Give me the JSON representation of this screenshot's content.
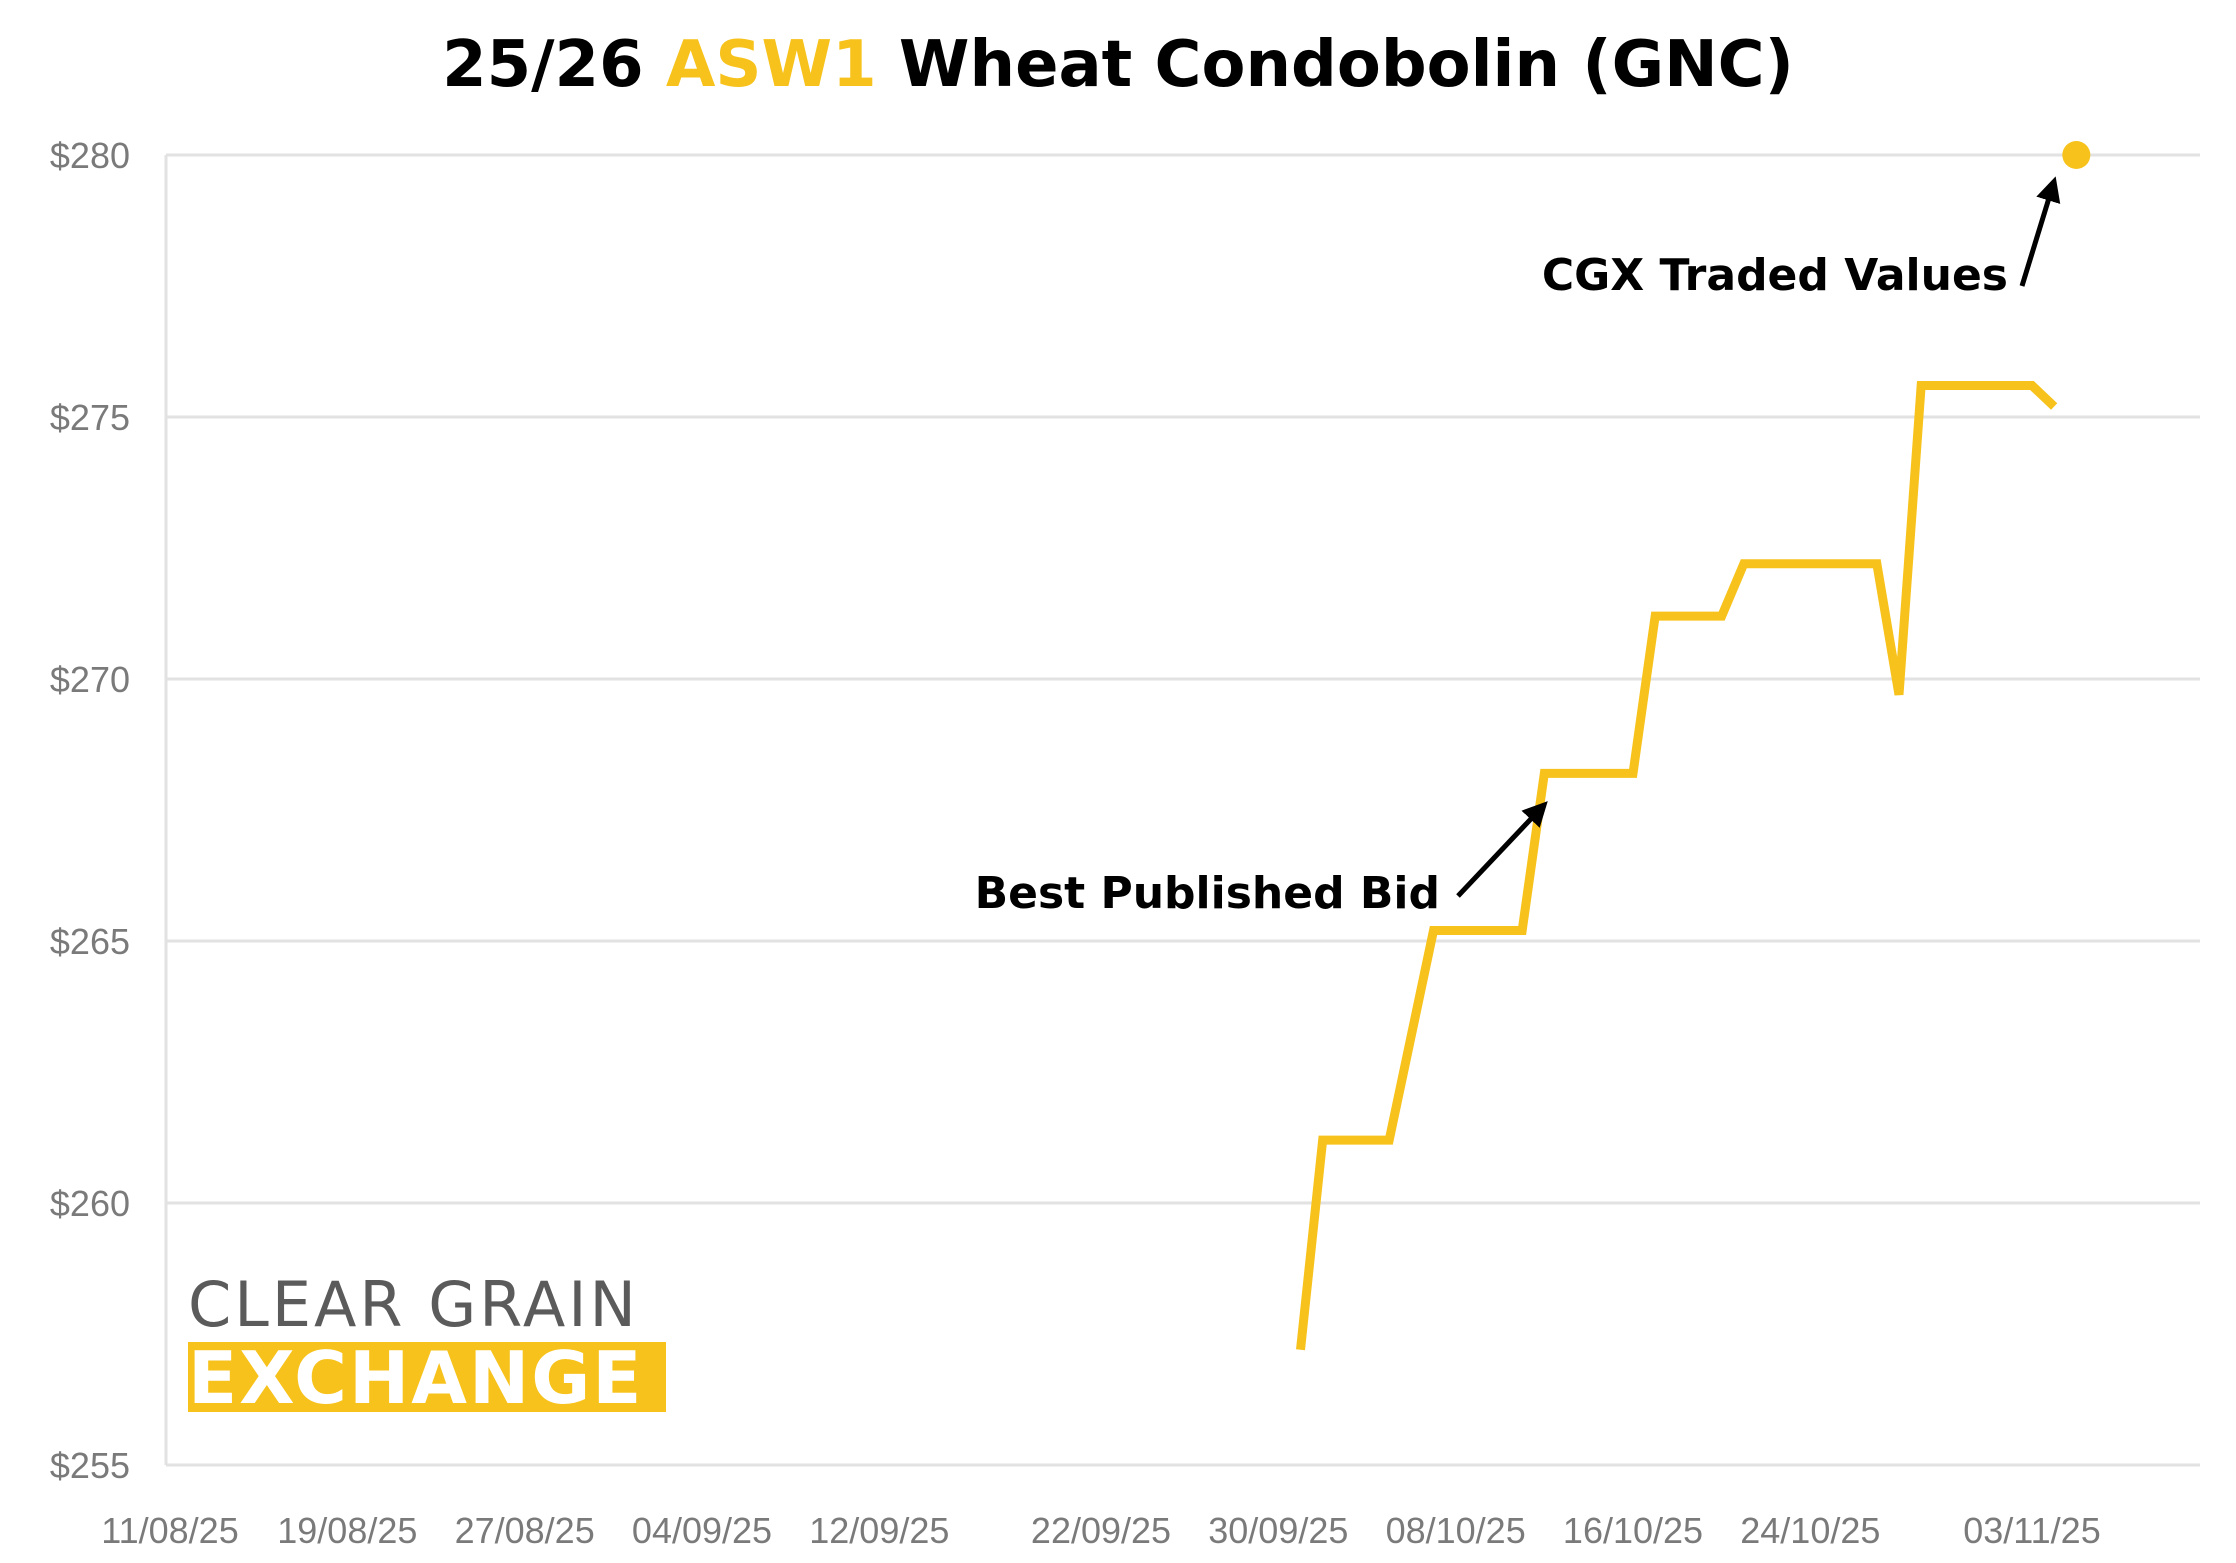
{
  "title": {
    "prefix": "25/26 ",
    "accent": "ASW1",
    "suffix": " Wheat Condobolin (GNC)"
  },
  "logo": {
    "line1": "CLEAR GRAIN",
    "line2": "EXCHANGE"
  },
  "colors": {
    "series": "#f7c21b",
    "grid": "#e2e2e2",
    "axis_text": "#7a7a7a",
    "annotation": "#000000"
  },
  "chart_data": {
    "type": "line",
    "title": "25/26 ASW1 Wheat Condobolin (GNC)",
    "xlabel": "",
    "ylabel": "",
    "ylim": [
      255,
      280
    ],
    "xlim": [
      "2025-08-11",
      "2025-11-13"
    ],
    "y_ticks": [
      "$255",
      "$260",
      "$265",
      "$270",
      "$275",
      "$280"
    ],
    "y_tick_values": [
      255,
      260,
      265,
      270,
      275,
      280
    ],
    "x_ticks": [
      "11/08/25",
      "19/08/25",
      "27/08/25",
      "04/09/25",
      "12/09/25",
      "22/09/25",
      "30/09/25",
      "08/10/25",
      "16/10/25",
      "24/10/25",
      "03/11/25"
    ],
    "x_tick_dates": [
      "2025-08-11",
      "2025-08-19",
      "2025-08-27",
      "2025-09-04",
      "2025-09-12",
      "2025-09-22",
      "2025-09-30",
      "2025-10-08",
      "2025-10-16",
      "2025-10-24",
      "2025-11-03"
    ],
    "grid": true,
    "series": [
      {
        "name": "Best Published Bid",
        "style": "line",
        "points": [
          [
            "2025-10-01",
            257.2
          ],
          [
            "2025-10-02",
            261.2
          ],
          [
            "2025-10-05",
            261.2
          ],
          [
            "2025-10-07",
            265.2
          ],
          [
            "2025-10-11",
            265.2
          ],
          [
            "2025-10-12",
            268.2
          ],
          [
            "2025-10-16",
            268.2
          ],
          [
            "2025-10-17",
            271.2
          ],
          [
            "2025-10-20",
            271.2
          ],
          [
            "2025-10-21",
            272.2
          ],
          [
            "2025-10-27",
            272.2
          ],
          [
            "2025-10-28",
            269.7
          ],
          [
            "2025-10-29",
            275.6
          ],
          [
            "2025-11-02",
            275.6
          ],
          [
            "2025-11-03",
            275.6
          ],
          [
            "2025-11-04",
            275.2
          ]
        ]
      },
      {
        "name": "CGX Traded Values",
        "style": "point",
        "points": [
          [
            "2025-11-05",
            280.0
          ]
        ]
      }
    ],
    "annotations": [
      {
        "text": "Best Published Bid",
        "target": [
          "2025-10-12",
          267.6
        ]
      },
      {
        "text": "CGX Traded Values",
        "target": [
          "2025-11-04",
          279.5
        ]
      }
    ]
  }
}
